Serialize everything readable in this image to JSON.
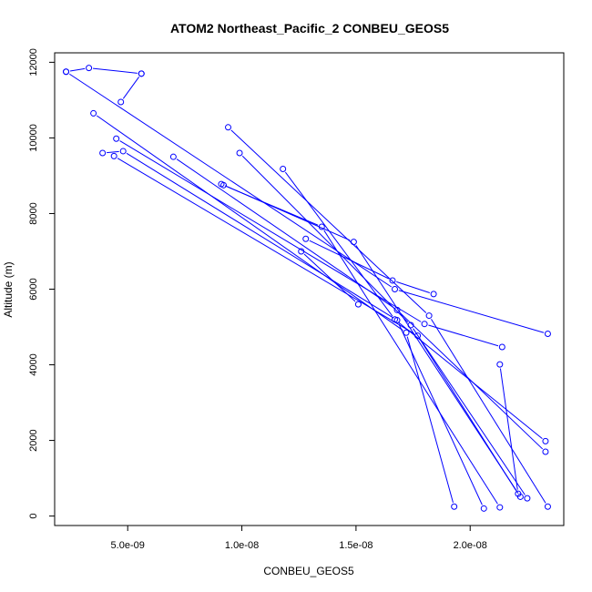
{
  "chart_data": {
    "type": "line",
    "title": "ATOM2 Northeast_Pacific_2 CONBEU_GEOS5",
    "xlabel": "CONBEU_GEOS5",
    "ylabel": "Altitude (m)",
    "xlim": [
      1.8e-09,
      2.41e-08
    ],
    "ylim": [
      -250,
      12250
    ],
    "x_ticks": [
      5e-09,
      1e-08,
      1.5e-08,
      2e-08
    ],
    "x_tick_labels": [
      "5.0e-09",
      "1.0e-08",
      "1.5e-08",
      "2.0e-08"
    ],
    "y_ticks": [
      0,
      2000,
      4000,
      6000,
      8000,
      10000,
      12000
    ],
    "y_tick_labels": [
      "0",
      "2000",
      "4000",
      "6000",
      "8000",
      "10000",
      "12000"
    ],
    "grid": false,
    "series_color": "#0000ff",
    "series": [
      {
        "x": [
          5.6e-09,
          4.7e-09
        ],
        "y": [
          11700,
          10950
        ]
      },
      {
        "x": [
          2.3e-09,
          3.3e-09,
          5.6e-09
        ],
        "y": [
          11750,
          11850,
          11700
        ]
      },
      {
        "x": [
          2.3e-09,
          1.67e-08,
          2.34e-08
        ],
        "y": [
          11750,
          6000,
          4820
        ]
      },
      {
        "x": [
          3.5e-09,
          1.72e-08,
          1.93e-08
        ],
        "y": [
          10650,
          4850,
          250
        ]
      },
      {
        "x": [
          4.5e-09,
          1.8e-08,
          2.14e-08
        ],
        "y": [
          9980,
          5080,
          4470
        ]
      },
      {
        "x": [
          3.9e-09,
          4.8e-09,
          1.68e-08,
          2.06e-08
        ],
        "y": [
          9600,
          9650,
          5180,
          200
        ]
      },
      {
        "x": [
          4.4e-09,
          1.77e-08,
          2.21e-08,
          2.13e-08
        ],
        "y": [
          9520,
          4770,
          590,
          4010
        ]
      },
      {
        "x": [
          7e-09,
          1.68e-08,
          2.33e-08
        ],
        "y": [
          9500,
          5450,
          1700
        ]
      },
      {
        "x": [
          9.4e-09,
          1.82e-08,
          2.34e-08
        ],
        "y": [
          10280,
          5300,
          250
        ]
      },
      {
        "x": [
          9.9e-09,
          1.74e-08,
          2.25e-08
        ],
        "y": [
          9600,
          5050,
          470
        ]
      },
      {
        "x": [
          1.18e-08,
          1.67e-08,
          2.33e-08
        ],
        "y": [
          9180,
          5200,
          1980
        ]
      },
      {
        "x": [
          9.1e-09,
          1.49e-08,
          2.22e-08
        ],
        "y": [
          8780,
          7250,
          510
        ]
      },
      {
        "x": [
          9.2e-09,
          1.35e-08,
          2.13e-08
        ],
        "y": [
          8750,
          7650,
          230
        ]
      },
      {
        "x": [
          1.28e-08,
          1.66e-08,
          1.84e-08
        ],
        "y": [
          7330,
          6230,
          5870
        ]
      },
      {
        "x": [
          1.26e-08,
          1.51e-08
        ],
        "y": [
          7000,
          5600
        ]
      }
    ]
  }
}
